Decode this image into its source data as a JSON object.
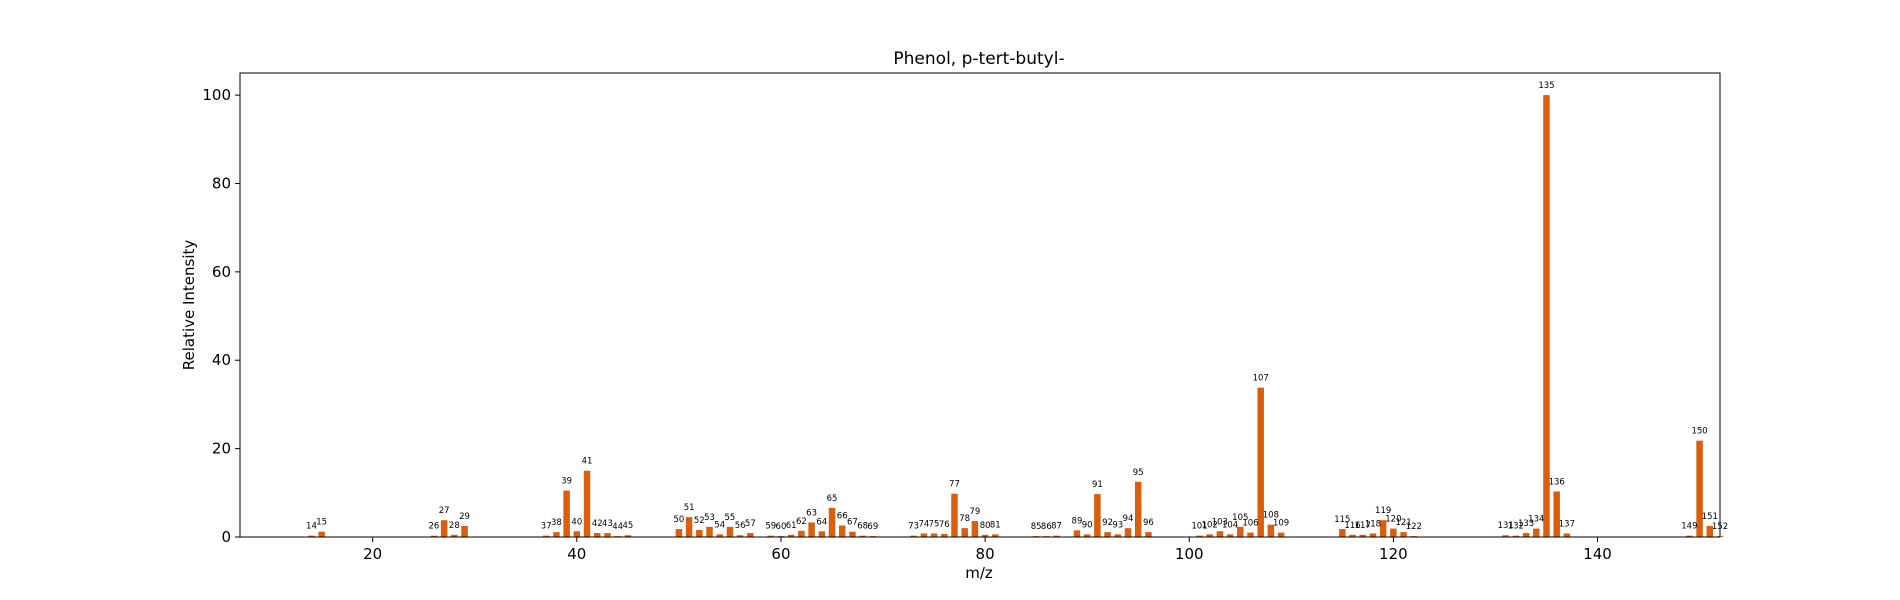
{
  "chart_data": {
    "type": "bar",
    "title": "Phenol, p-tert-butyl-",
    "xlabel": "m/z",
    "ylabel": "Relative Intensity",
    "xlim": [
      7,
      152
    ],
    "ylim": [
      0,
      105
    ],
    "xticks": [
      20,
      40,
      60,
      80,
      100,
      120,
      140
    ],
    "yticks": [
      0,
      20,
      40,
      60,
      80,
      100
    ],
    "grid": false,
    "bar_color": "#d95f0e",
    "peaks": [
      {
        "mz": 14,
        "intensity": 0.3
      },
      {
        "mz": 15,
        "intensity": 1.2
      },
      {
        "mz": 26,
        "intensity": 0.3
      },
      {
        "mz": 27,
        "intensity": 3.8
      },
      {
        "mz": 28,
        "intensity": 0.5
      },
      {
        "mz": 29,
        "intensity": 2.5
      },
      {
        "mz": 37,
        "intensity": 0.3
      },
      {
        "mz": 38,
        "intensity": 1.1
      },
      {
        "mz": 39,
        "intensity": 10.5
      },
      {
        "mz": 40,
        "intensity": 1.3
      },
      {
        "mz": 41,
        "intensity": 15.0
      },
      {
        "mz": 42,
        "intensity": 0.9
      },
      {
        "mz": 43,
        "intensity": 0.9
      },
      {
        "mz": 44,
        "intensity": 0.2
      },
      {
        "mz": 45,
        "intensity": 0.4
      },
      {
        "mz": 50,
        "intensity": 1.8
      },
      {
        "mz": 51,
        "intensity": 4.5
      },
      {
        "mz": 52,
        "intensity": 1.6
      },
      {
        "mz": 53,
        "intensity": 2.3
      },
      {
        "mz": 54,
        "intensity": 0.6
      },
      {
        "mz": 55,
        "intensity": 2.3
      },
      {
        "mz": 56,
        "intensity": 0.4
      },
      {
        "mz": 57,
        "intensity": 0.9
      },
      {
        "mz": 59,
        "intensity": 0.3
      },
      {
        "mz": 60,
        "intensity": 0.2
      },
      {
        "mz": 61,
        "intensity": 0.5
      },
      {
        "mz": 62,
        "intensity": 1.4
      },
      {
        "mz": 63,
        "intensity": 3.3
      },
      {
        "mz": 64,
        "intensity": 1.3
      },
      {
        "mz": 65,
        "intensity": 6.6
      },
      {
        "mz": 66,
        "intensity": 2.6
      },
      {
        "mz": 67,
        "intensity": 1.2
      },
      {
        "mz": 68,
        "intensity": 0.3
      },
      {
        "mz": 69,
        "intensity": 0.2
      },
      {
        "mz": 73,
        "intensity": 0.3
      },
      {
        "mz": 74,
        "intensity": 0.8
      },
      {
        "mz": 75,
        "intensity": 0.8
      },
      {
        "mz": 76,
        "intensity": 0.7
      },
      {
        "mz": 77,
        "intensity": 9.8
      },
      {
        "mz": 78,
        "intensity": 2.0
      },
      {
        "mz": 79,
        "intensity": 3.6
      },
      {
        "mz": 80,
        "intensity": 0.5
      },
      {
        "mz": 81,
        "intensity": 0.6
      },
      {
        "mz": 85,
        "intensity": 0.2
      },
      {
        "mz": 86,
        "intensity": 0.2
      },
      {
        "mz": 87,
        "intensity": 0.3
      },
      {
        "mz": 89,
        "intensity": 1.5
      },
      {
        "mz": 90,
        "intensity": 0.6
      },
      {
        "mz": 91,
        "intensity": 9.7
      },
      {
        "mz": 92,
        "intensity": 1.1
      },
      {
        "mz": 93,
        "intensity": 0.6
      },
      {
        "mz": 94,
        "intensity": 2.0
      },
      {
        "mz": 95,
        "intensity": 12.5
      },
      {
        "mz": 96,
        "intensity": 1.1
      },
      {
        "mz": 101,
        "intensity": 0.3
      },
      {
        "mz": 102,
        "intensity": 0.6
      },
      {
        "mz": 103,
        "intensity": 1.3
      },
      {
        "mz": 104,
        "intensity": 0.6
      },
      {
        "mz": 105,
        "intensity": 2.3
      },
      {
        "mz": 106,
        "intensity": 1.0
      },
      {
        "mz": 107,
        "intensity": 33.8
      },
      {
        "mz": 108,
        "intensity": 2.8
      },
      {
        "mz": 109,
        "intensity": 1.0
      },
      {
        "mz": 115,
        "intensity": 1.8
      },
      {
        "mz": 116,
        "intensity": 0.5
      },
      {
        "mz": 117,
        "intensity": 0.5
      },
      {
        "mz": 118,
        "intensity": 0.8
      },
      {
        "mz": 119,
        "intensity": 3.8
      },
      {
        "mz": 120,
        "intensity": 1.9
      },
      {
        "mz": 121,
        "intensity": 1.1
      },
      {
        "mz": 122,
        "intensity": 0.2
      },
      {
        "mz": 131,
        "intensity": 0.4
      },
      {
        "mz": 132,
        "intensity": 0.3
      },
      {
        "mz": 133,
        "intensity": 0.9
      },
      {
        "mz": 134,
        "intensity": 1.9
      },
      {
        "mz": 135,
        "intensity": 100.0
      },
      {
        "mz": 136,
        "intensity": 10.3
      },
      {
        "mz": 137,
        "intensity": 0.8
      },
      {
        "mz": 149,
        "intensity": 0.3
      },
      {
        "mz": 150,
        "intensity": 21.8
      },
      {
        "mz": 151,
        "intensity": 2.5
      },
      {
        "mz": 152,
        "intensity": 0.2
      }
    ]
  }
}
